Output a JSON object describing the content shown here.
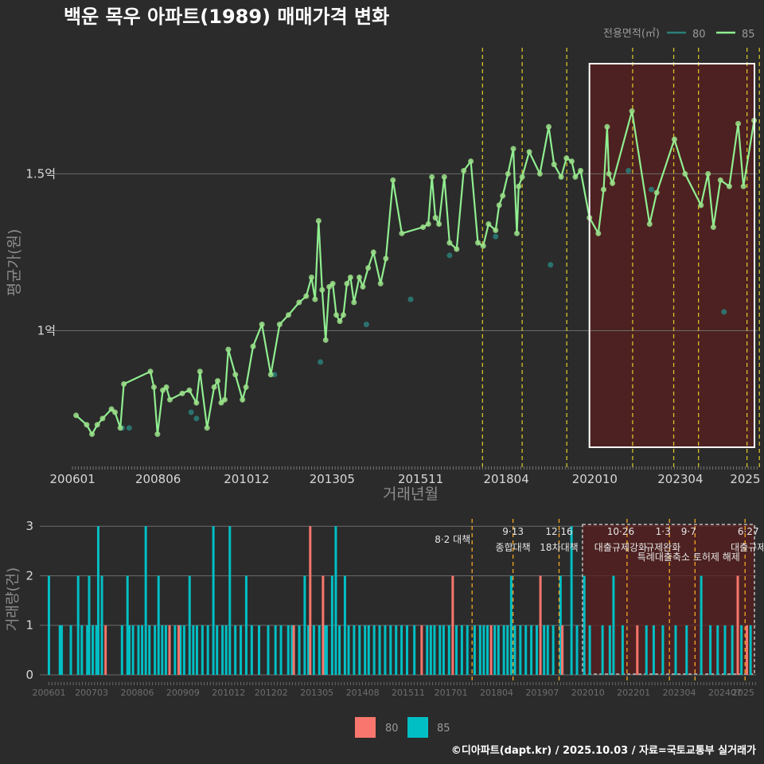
{
  "title": "백운 목우 아파트(1989) 매매가격 변화",
  "credit": "©디아파트(dapt.kr) / 2025.10.03 / 자료=국토교통부 실거래가",
  "colors": {
    "background": "#2b2b2b",
    "line85": "#90ee90",
    "dot85": "#9be08a",
    "dot80": "#2a7f7a",
    "bar80": "#f8766d",
    "bar85": "#00bfc4",
    "policy_line": "#d4c22a",
    "policy_line_bottom": "#f5a623",
    "highlight_fill": "#5a1f1f",
    "grid": "#6a6a6a"
  },
  "chart_data": [
    {
      "type": "line",
      "name": "price",
      "title": "백운 목우 아파트(1989) 매매가격 변화",
      "xlabel": "거래년월",
      "ylabel": "평균가(원)",
      "x_tick_labels": [
        "200601",
        "200806",
        "201012",
        "201305",
        "201511",
        "201804",
        "202010",
        "202304",
        "2025"
      ],
      "x_tick_values": [
        2006.0,
        2008.417,
        2010.917,
        2013.333,
        2015.833,
        2018.25,
        2020.75,
        2023.167,
        2025.0
      ],
      "y_tick_labels": [
        "1억",
        "1.5억"
      ],
      "y_tick_values": [
        1.0,
        1.5
      ],
      "ylim": [
        0.57,
        1.94
      ],
      "xlim": [
        2005.75,
        2025.35
      ],
      "legend_title": "전용면적(㎡)",
      "legend": [
        "80",
        "85"
      ],
      "policy_dates": [
        2017.58,
        2018.7,
        2019.96,
        2021.82,
        2022.98,
        2023.68,
        2025.05,
        2025.4
      ],
      "highlight_range": [
        2020.6,
        2025.35
      ],
      "series": [
        {
          "name": "85",
          "x": [
            2006.1,
            2006.4,
            2006.55,
            2006.7,
            2006.85,
            2007.1,
            2007.2,
            2007.35,
            2007.45,
            2008.2,
            2008.3,
            2008.4,
            2008.55,
            2008.65,
            2008.75,
            2009.1,
            2009.3,
            2009.5,
            2009.6,
            2009.8,
            2010.0,
            2010.1,
            2010.2,
            2010.3,
            2010.4,
            2010.6,
            2010.8,
            2010.9,
            2011.1,
            2011.35,
            2011.6,
            2011.85,
            2012.1,
            2012.4,
            2012.6,
            2012.75,
            2012.85,
            2012.95,
            2013.05,
            2013.15,
            2013.25,
            2013.35,
            2013.45,
            2013.55,
            2013.65,
            2013.75,
            2013.85,
            2013.95,
            2014.1,
            2014.2,
            2014.35,
            2014.5,
            2014.7,
            2014.85,
            2015.05,
            2015.3,
            2015.9,
            2016.05,
            2016.15,
            2016.25,
            2016.35,
            2016.5,
            2016.65,
            2016.85,
            2017.05,
            2017.25,
            2017.45,
            2017.6,
            2017.75,
            2017.95,
            2018.05,
            2018.15,
            2018.3,
            2018.45,
            2018.55,
            2018.6,
            2018.7,
            2018.9,
            2019.2,
            2019.45,
            2019.6,
            2019.8,
            2019.95,
            2020.1,
            2020.2,
            2020.35,
            2020.6,
            2020.85,
            2021.0,
            2021.1,
            2021.15,
            2021.25,
            2021.8,
            2022.3,
            2022.5,
            2023.0,
            2023.3,
            2023.75,
            2023.95,
            2024.1,
            2024.3,
            2024.55,
            2024.8,
            2024.95,
            2025.25
          ],
          "values": [
            0.73,
            0.7,
            0.67,
            0.7,
            0.72,
            0.75,
            0.74,
            0.69,
            0.83,
            0.87,
            0.82,
            0.67,
            0.81,
            0.82,
            0.78,
            0.8,
            0.81,
            0.77,
            0.87,
            0.69,
            0.82,
            0.84,
            0.77,
            0.78,
            0.94,
            0.86,
            0.78,
            0.82,
            0.95,
            1.02,
            0.86,
            1.02,
            1.05,
            1.09,
            1.11,
            1.17,
            1.1,
            1.35,
            1.13,
            0.97,
            1.14,
            1.15,
            1.05,
            1.03,
            1.05,
            1.15,
            1.17,
            1.09,
            1.17,
            1.14,
            1.2,
            1.25,
            1.15,
            1.23,
            1.48,
            1.31,
            1.33,
            1.34,
            1.49,
            1.36,
            1.34,
            1.49,
            1.28,
            1.26,
            1.51,
            1.54,
            1.28,
            1.27,
            1.34,
            1.32,
            1.4,
            1.43,
            1.5,
            1.58,
            1.31,
            1.46,
            1.49,
            1.57,
            1.5,
            1.65,
            1.53,
            1.49,
            1.55,
            1.54,
            1.49,
            1.51,
            1.36,
            1.31,
            1.45,
            1.65,
            1.5,
            1.47,
            1.7,
            1.34,
            1.44,
            1.61,
            1.5,
            1.4,
            1.5,
            1.33,
            1.48,
            1.46,
            1.66,
            1.46,
            1.67
          ]
        },
        {
          "name": "80",
          "x": [
            2007.4,
            2007.6,
            2009.35,
            2009.5,
            2011.7,
            2013.0,
            2014.3,
            2015.55,
            2016.65,
            2017.95,
            2019.5,
            2021.7,
            2022.35,
            2024.4
          ],
          "values": [
            0.69,
            0.69,
            0.74,
            0.72,
            0.86,
            0.9,
            1.02,
            1.1,
            1.24,
            1.3,
            1.21,
            1.51,
            1.45,
            1.06
          ]
        }
      ]
    },
    {
      "type": "bar",
      "name": "volume",
      "ylabel": "거래량(건)",
      "y_tick_labels": [
        "0",
        "1",
        "2",
        "3"
      ],
      "y_tick_values": [
        0,
        1,
        2,
        3
      ],
      "ylim": [
        0,
        3.1
      ],
      "x_tick_labels": [
        "200601",
        "200703",
        "200806",
        "200909",
        "201012",
        "201202",
        "201305",
        "201408",
        "201511",
        "201701",
        "201804",
        "201907",
        "202010",
        "202201",
        "202304",
        "202407",
        "2025"
      ],
      "x_tick_values": [
        2006.0,
        2007.167,
        2008.417,
        2009.667,
        2010.917,
        2012.083,
        2013.333,
        2014.583,
        2015.833,
        2017.0,
        2018.25,
        2019.5,
        2020.75,
        2022.0,
        2023.25,
        2024.5,
        2025.0
      ],
      "xlim": [
        2005.75,
        2025.35
      ],
      "legend": [
        "80",
        "85"
      ],
      "highlight_range": [
        2020.6,
        2025.35
      ],
      "bars80": [
        [
          2007.55,
          1
        ],
        [
          2009.3,
          1
        ],
        [
          2009.55,
          1
        ],
        [
          2012.7,
          1
        ],
        [
          2013.15,
          3
        ],
        [
          2013.5,
          2
        ],
        [
          2016.2,
          1
        ],
        [
          2017.05,
          2
        ],
        [
          2018.1,
          1
        ],
        [
          2019.45,
          2
        ],
        [
          2020.05,
          1
        ],
        [
          2022.1,
          1
        ],
        [
          2024.85,
          2
        ],
        [
          2025.1,
          1
        ]
      ],
      "bars85": [
        [
          2006.0,
          2
        ],
        [
          2006.3,
          1
        ],
        [
          2006.35,
          1
        ],
        [
          2006.6,
          1
        ],
        [
          2006.8,
          2
        ],
        [
          2006.9,
          1
        ],
        [
          2007.05,
          1
        ],
        [
          2007.1,
          2
        ],
        [
          2007.2,
          1
        ],
        [
          2007.3,
          1
        ],
        [
          2007.35,
          3
        ],
        [
          2007.45,
          2
        ],
        [
          2008.0,
          1
        ],
        [
          2008.15,
          2
        ],
        [
          2008.2,
          1
        ],
        [
          2008.3,
          1
        ],
        [
          2008.45,
          1
        ],
        [
          2008.55,
          1
        ],
        [
          2008.65,
          3
        ],
        [
          2008.75,
          1
        ],
        [
          2008.9,
          1
        ],
        [
          2009.0,
          2
        ],
        [
          2009.1,
          1
        ],
        [
          2009.2,
          1
        ],
        [
          2009.45,
          1
        ],
        [
          2009.6,
          1
        ],
        [
          2009.7,
          1
        ],
        [
          2009.85,
          2
        ],
        [
          2009.95,
          1
        ],
        [
          2010.05,
          1
        ],
        [
          2010.2,
          1
        ],
        [
          2010.35,
          1
        ],
        [
          2010.5,
          3
        ],
        [
          2010.6,
          1
        ],
        [
          2010.75,
          1
        ],
        [
          2010.85,
          1
        ],
        [
          2010.95,
          3
        ],
        [
          2011.1,
          1
        ],
        [
          2011.25,
          1
        ],
        [
          2011.4,
          2
        ],
        [
          2011.55,
          1
        ],
        [
          2011.75,
          1
        ],
        [
          2012.0,
          1
        ],
        [
          2012.2,
          1
        ],
        [
          2012.35,
          1
        ],
        [
          2012.55,
          1
        ],
        [
          2012.65,
          1
        ],
        [
          2012.85,
          1
        ],
        [
          2013.0,
          2
        ],
        [
          2013.1,
          1
        ],
        [
          2013.25,
          1
        ],
        [
          2013.4,
          1
        ],
        [
          2013.55,
          1
        ],
        [
          2013.6,
          1
        ],
        [
          2013.75,
          2
        ],
        [
          2013.85,
          3
        ],
        [
          2013.95,
          1
        ],
        [
          2014.1,
          2
        ],
        [
          2014.2,
          1
        ],
        [
          2014.35,
          1
        ],
        [
          2014.5,
          1
        ],
        [
          2014.65,
          1
        ],
        [
          2014.75,
          1
        ],
        [
          2014.9,
          1
        ],
        [
          2015.05,
          1
        ],
        [
          2015.2,
          1
        ],
        [
          2015.35,
          1
        ],
        [
          2015.5,
          1
        ],
        [
          2015.65,
          1
        ],
        [
          2015.8,
          1
        ],
        [
          2016.0,
          1
        ],
        [
          2016.35,
          1
        ],
        [
          2016.45,
          1
        ],
        [
          2016.55,
          1
        ],
        [
          2016.7,
          1
        ],
        [
          2016.8,
          1
        ],
        [
          2016.95,
          1
        ],
        [
          2017.15,
          1
        ],
        [
          2017.3,
          1
        ],
        [
          2017.45,
          1
        ],
        [
          2017.65,
          1
        ],
        [
          2017.8,
          1
        ],
        [
          2017.9,
          1
        ],
        [
          2018.0,
          1
        ],
        [
          2018.2,
          1
        ],
        [
          2018.3,
          1
        ],
        [
          2018.45,
          1
        ],
        [
          2018.55,
          1
        ],
        [
          2018.65,
          2
        ],
        [
          2018.75,
          1
        ],
        [
          2018.9,
          1
        ],
        [
          2019.05,
          1
        ],
        [
          2019.2,
          1
        ],
        [
          2019.35,
          1
        ],
        [
          2019.55,
          1
        ],
        [
          2019.65,
          1
        ],
        [
          2019.8,
          1
        ],
        [
          2020.0,
          2
        ],
        [
          2020.3,
          3
        ],
        [
          2020.45,
          1
        ],
        [
          2020.65,
          2
        ],
        [
          2020.8,
          1
        ],
        [
          2021.15,
          1
        ],
        [
          2021.35,
          1
        ],
        [
          2021.45,
          2
        ],
        [
          2021.7,
          1
        ],
        [
          2022.35,
          1
        ],
        [
          2022.55,
          1
        ],
        [
          2022.8,
          1
        ],
        [
          2023.15,
          1
        ],
        [
          2023.45,
          1
        ],
        [
          2023.85,
          2
        ],
        [
          2024.1,
          1
        ],
        [
          2024.3,
          1
        ],
        [
          2024.5,
          1
        ],
        [
          2024.7,
          1
        ],
        [
          2024.95,
          1
        ],
        [
          2025.2,
          1
        ]
      ]
    }
  ],
  "policies": [
    {
      "date": "8·2",
      "name": "대책",
      "x": 2017.58
    },
    {
      "date": "9·13",
      "name": "종합대책",
      "x": 2018.7
    },
    {
      "date": "12·16",
      "name": "18차대책",
      "x": 2019.96
    },
    {
      "date": "10·26",
      "name": "대출규제강화",
      "x": 2021.82
    },
    {
      "date": "1·3",
      "name": "규제완화",
      "x": 2022.98
    },
    {
      "date": "9·7",
      "name": "특례대출축소 토허제 해제",
      "x": 2023.68
    },
    {
      "date": "6·27",
      "name": "대출규제",
      "x": 2025.05
    }
  ]
}
